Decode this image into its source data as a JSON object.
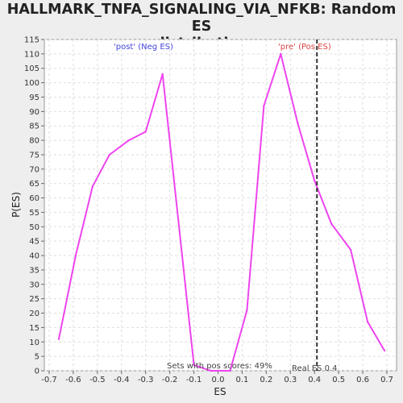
{
  "chart_data": {
    "type": "line",
    "title_line1": "HALLMARK_TNFA_SIGNALING_VIA_NFKB: Random ES",
    "title_line2": "distribution",
    "xlabel": "ES",
    "ylabel": "P(ES)",
    "xlim": [
      -0.72,
      0.74
    ],
    "ylim": [
      0,
      115
    ],
    "x_ticks": [
      -0.7,
      -0.6,
      -0.5,
      -0.4,
      -0.3,
      -0.2,
      -0.1,
      0.0,
      0.1,
      0.2,
      0.3,
      0.4,
      0.5,
      0.6,
      0.7
    ],
    "x_tick_labels": [
      "-0.7",
      "-0.6",
      "-0.5",
      "-0.4",
      "-0.3",
      "-0.2",
      "-0.1",
      "0.0",
      "0.1",
      "0.2",
      "0.3",
      "0.4",
      "0.5",
      "0.6",
      "0.7"
    ],
    "y_ticks": [
      0,
      5,
      10,
      15,
      20,
      25,
      30,
      35,
      40,
      45,
      50,
      55,
      60,
      65,
      70,
      75,
      80,
      85,
      90,
      95,
      100,
      105,
      110,
      115
    ],
    "grid": true,
    "series": [
      {
        "color": "#ee44ee",
        "x": [
          -0.66,
          -0.59,
          -0.52,
          -0.45,
          -0.37,
          -0.3,
          -0.23,
          -0.1,
          -0.03,
          0.05,
          0.12,
          0.19,
          0.26,
          0.33,
          0.4,
          0.47,
          0.55,
          0.62,
          0.69
        ],
        "y": [
          11,
          40,
          64,
          75,
          80,
          83,
          103,
          2,
          0,
          0,
          21,
          92,
          110,
          86,
          66,
          51,
          42,
          17,
          7
        ]
      }
    ],
    "real_es": 0.41,
    "annotations": {
      "neg_label": "'post' (Neg ES)",
      "pos_label": "'pre' (Pos ES)",
      "pos_scores": "Sets with pos scores: 49%",
      "real_es_label": "Real ES 0.4"
    },
    "colors": {
      "neg_label": "#4444dd",
      "pos_label": "#dd4444",
      "line": "#ee44ee",
      "real_es_line": "#333333"
    }
  }
}
